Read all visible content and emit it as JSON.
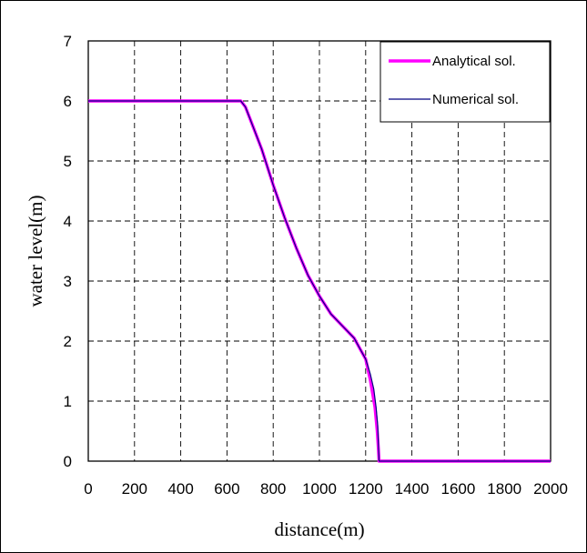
{
  "chart_data": {
    "type": "line",
    "title": "",
    "xlabel": "distance(m)",
    "ylabel": "water level(m)",
    "xlim": [
      0,
      2000
    ],
    "ylim": [
      0,
      7
    ],
    "xticks": [
      "0",
      "200",
      "400",
      "600",
      "800",
      "1000",
      "1200",
      "1400",
      "1600",
      "1800",
      "2000"
    ],
    "yticks": [
      "0",
      "1",
      "2",
      "3",
      "4",
      "5",
      "6",
      "7"
    ],
    "grid": true,
    "legend_position": "top-right",
    "series": [
      {
        "name": "Analytical sol.",
        "color": "#ff00ff",
        "x": [
          0,
          660,
          680,
          700,
          750,
          800,
          850,
          900,
          950,
          1000,
          1050,
          1100,
          1150,
          1200,
          1220,
          1240,
          1250,
          1255,
          1258,
          1260,
          2000
        ],
        "y": [
          6,
          6,
          5.9,
          5.7,
          5.2,
          4.6,
          4.05,
          3.55,
          3.1,
          2.75,
          2.45,
          2.25,
          2.05,
          1.7,
          1.35,
          0.9,
          0.5,
          0.2,
          0,
          0,
          0
        ]
      },
      {
        "name": "Numerical sol.",
        "color": "#000080",
        "x": [
          0,
          660,
          680,
          700,
          750,
          800,
          850,
          900,
          950,
          1000,
          1050,
          1100,
          1150,
          1200,
          1220,
          1235,
          1245,
          1252,
          1256,
          1258,
          2000
        ],
        "y": [
          6,
          6,
          5.9,
          5.7,
          5.2,
          4.6,
          4.05,
          3.55,
          3.1,
          2.75,
          2.45,
          2.25,
          2.05,
          1.7,
          1.45,
          1.2,
          0.9,
          0.6,
          0.2,
          0,
          0
        ]
      }
    ]
  }
}
